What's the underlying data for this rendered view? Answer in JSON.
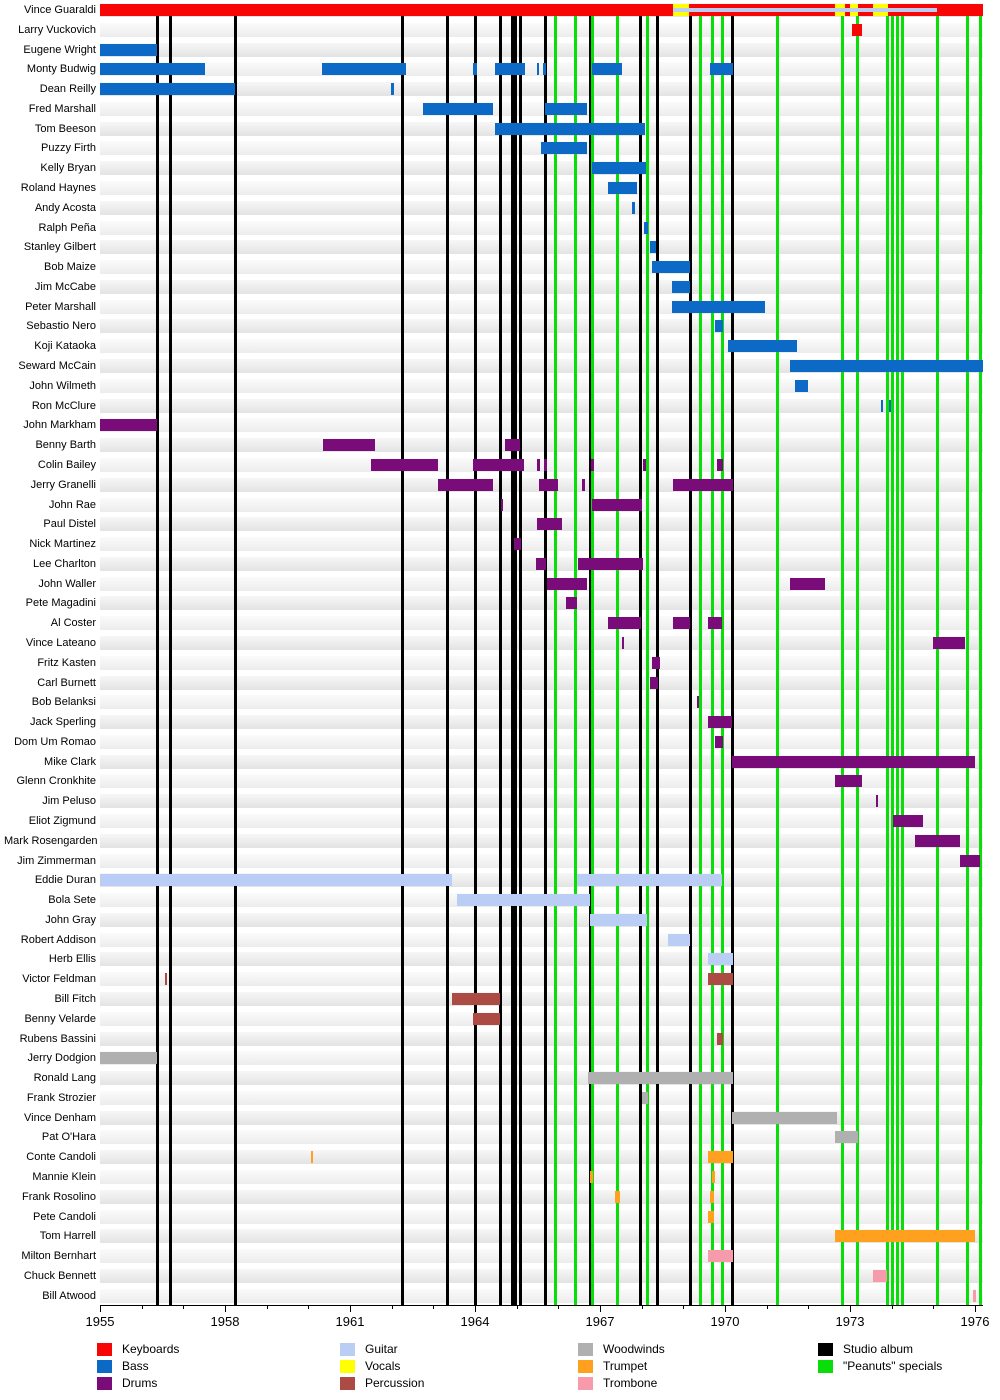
{
  "chart_data": {
    "type": "gantt-timeline",
    "description_visible_text_only": "Band-membership timeline with musician rows, colored instrument bars, black vertical lines for studio albums and green vertical lines for Peanuts specials",
    "axis": {
      "start_year": 1955,
      "end_year_edge": 1976.19,
      "major_tick_years": [
        1955,
        1958,
        1961,
        1964,
        1967,
        1970,
        1973,
        1976
      ],
      "minor_tick_every_years": 1
    },
    "colors": {
      "keyboards": "#f80505",
      "bass": "#0d69c6",
      "drums": "#7a0c7a",
      "guitar": "#bacdf5",
      "vocals": "#ffff00",
      "percussion": "#ac4b44",
      "woodwinds": "#b0b0b0",
      "trumpet": "#ffa01e",
      "trombone": "#f79aab",
      "studio_album": "#000000",
      "peanuts_special": "#09de09"
    },
    "studio_album_years": [
      1956.37,
      1956.68,
      1958.24,
      1962.27,
      1963.35,
      1964.0,
      1964.6,
      1964.89,
      1964.98,
      1965.08,
      1965.68,
      1966.76,
      1967.96,
      1968.39,
      1969.16,
      1970.17
    ],
    "peanuts_special_years": [
      1965.92,
      1966.4,
      1966.83,
      1967.43,
      1968.13,
      1969.4,
      1969.71,
      1969.93,
      1971.25,
      1972.83,
      1973.19,
      1973.89,
      1974.03,
      1974.15,
      1974.27,
      1975.09,
      1975.81,
      1976.12
    ],
    "members": [
      {
        "name": "Vince Guaraldi",
        "instrument": "keyboards",
        "bars": [
          [
            1955.0,
            1976.19
          ]
        ],
        "overlays": {
          "vocals": [
            [
              1968.75,
              1969.14
            ],
            [
              1972.64,
              1972.88
            ],
            [
              1973.0,
              1973.19
            ],
            [
              1973.55,
              1973.91
            ]
          ],
          "guitar_stripe": [
            [
              1968.75,
              1975.09
            ]
          ]
        }
      },
      {
        "name": "Larry Vuckovich",
        "instrument": "keyboards",
        "bars": [
          [
            1973.05,
            1973.29
          ]
        ]
      },
      {
        "name": "Eugene Wright",
        "instrument": "bass",
        "bars": [
          [
            1955.0,
            1956.37
          ]
        ]
      },
      {
        "name": "Monty Budwig",
        "instrument": "bass",
        "bars": [
          [
            1955.0,
            1957.52
          ],
          [
            1960.33,
            1962.34
          ],
          [
            1963.95,
            1964.05
          ],
          [
            1964.48,
            1965.2
          ],
          [
            1965.49,
            1965.54
          ],
          [
            1965.63,
            1965.7
          ],
          [
            1966.81,
            1967.53
          ],
          [
            1969.64,
            1970.19
          ]
        ]
      },
      {
        "name": "Dean Reilly",
        "instrument": "bass",
        "bars": [
          [
            1955.0,
            1958.24
          ],
          [
            1961.98,
            1962.06
          ]
        ]
      },
      {
        "name": "Fred Marshall",
        "instrument": "bass",
        "bars": [
          [
            1962.75,
            1964.43
          ],
          [
            1965.68,
            1966.69
          ]
        ]
      },
      {
        "name": "Tom Beeson",
        "instrument": "bass",
        "bars": [
          [
            1964.48,
            1968.08
          ]
        ]
      },
      {
        "name": "Puzzy Firth",
        "instrument": "bass",
        "bars": [
          [
            1965.58,
            1966.69
          ]
        ]
      },
      {
        "name": "Kelly Bryan",
        "instrument": "bass",
        "bars": [
          [
            1966.81,
            1968.1
          ]
        ]
      },
      {
        "name": "Roland Haynes",
        "instrument": "bass",
        "bars": [
          [
            1967.19,
            1967.89
          ]
        ]
      },
      {
        "name": "Andy Acosta",
        "instrument": "bass",
        "bars": [
          [
            1967.77,
            1967.84
          ]
        ]
      },
      {
        "name": "Ralph Peña",
        "instrument": "bass",
        "bars": [
          [
            1968.06,
            1968.15
          ]
        ]
      },
      {
        "name": "Stanley Gilbert",
        "instrument": "bass",
        "bars": [
          [
            1968.2,
            1968.34
          ]
        ]
      },
      {
        "name": "Bob Maize",
        "instrument": "bass",
        "bars": [
          [
            1968.25,
            1969.16
          ]
        ]
      },
      {
        "name": "Jim McCabe",
        "instrument": "bass",
        "bars": [
          [
            1968.73,
            1969.16
          ]
        ]
      },
      {
        "name": "Peter Marshall",
        "instrument": "bass",
        "bars": [
          [
            1968.73,
            1970.96
          ]
        ]
      },
      {
        "name": "Sebastio Nero",
        "instrument": "bass",
        "bars": [
          [
            1969.76,
            1969.95
          ]
        ]
      },
      {
        "name": "Koji Kataoka",
        "instrument": "bass",
        "bars": [
          [
            1970.07,
            1971.73
          ]
        ]
      },
      {
        "name": "Seward McCain",
        "instrument": "bass",
        "bars": [
          [
            1971.56,
            1976.19
          ]
        ]
      },
      {
        "name": "John Wilmeth",
        "instrument": "bass",
        "bars": [
          [
            1971.68,
            1971.99
          ]
        ]
      },
      {
        "name": "Ron McClure",
        "instrument": "bass",
        "bars": [
          [
            1973.74,
            1973.79
          ],
          [
            1973.94,
            1973.98
          ]
        ]
      },
      {
        "name": "John Markham",
        "instrument": "drums",
        "bars": [
          [
            1955.0,
            1956.37
          ]
        ]
      },
      {
        "name": "Benny Barth",
        "instrument": "drums",
        "bars": [
          [
            1960.35,
            1961.6
          ],
          [
            1964.72,
            1965.08
          ]
        ]
      },
      {
        "name": "Colin Bailey",
        "instrument": "drums",
        "bars": [
          [
            1961.5,
            1963.11
          ],
          [
            1963.95,
            1965.18
          ],
          [
            1965.49,
            1965.56
          ],
          [
            1965.66,
            1965.73
          ],
          [
            1966.78,
            1966.86
          ],
          [
            1968.03,
            1968.1
          ],
          [
            1969.81,
            1969.95
          ]
        ]
      },
      {
        "name": "Jerry Granelli",
        "instrument": "drums",
        "bars": [
          [
            1963.11,
            1964.43
          ],
          [
            1965.54,
            1965.99
          ],
          [
            1966.57,
            1966.64
          ],
          [
            1968.75,
            1970.19
          ]
        ]
      },
      {
        "name": "John Rae",
        "instrument": "drums",
        "bars": [
          [
            1964.62,
            1964.67
          ],
          [
            1966.81,
            1968.01
          ]
        ]
      },
      {
        "name": "Paul Distel",
        "instrument": "drums",
        "bars": [
          [
            1965.49,
            1966.09
          ]
        ]
      },
      {
        "name": "Nick Martinez",
        "instrument": "drums",
        "bars": [
          [
            1964.94,
            1965.1
          ]
        ]
      },
      {
        "name": "Lee Charlton",
        "instrument": "drums",
        "bars": [
          [
            1965.46,
            1965.7
          ],
          [
            1966.47,
            1968.03
          ]
        ]
      },
      {
        "name": "John Waller",
        "instrument": "drums",
        "bars": [
          [
            1965.73,
            1966.69
          ],
          [
            1971.56,
            1972.4
          ]
        ]
      },
      {
        "name": "Pete Magadini",
        "instrument": "drums",
        "bars": [
          [
            1966.18,
            1966.45
          ]
        ]
      },
      {
        "name": "Al Coster",
        "instrument": "drums",
        "bars": [
          [
            1967.19,
            1967.98
          ],
          [
            1968.75,
            1969.16
          ],
          [
            1969.59,
            1969.93
          ]
        ]
      },
      {
        "name": "Vince Lateano",
        "instrument": "drums",
        "bars": [
          [
            1967.53,
            1967.58
          ],
          [
            1974.99,
            1975.76
          ]
        ]
      },
      {
        "name": "Fritz Kasten",
        "instrument": "drums",
        "bars": [
          [
            1968.25,
            1968.44
          ]
        ]
      },
      {
        "name": "Carl Burnett",
        "instrument": "drums",
        "bars": [
          [
            1968.2,
            1968.39
          ]
        ]
      },
      {
        "name": "Bob Belanksi",
        "instrument": "drums",
        "bars": [
          [
            1969.33,
            1969.38
          ]
        ]
      },
      {
        "name": "Jack Sperling",
        "instrument": "drums",
        "bars": [
          [
            1969.59,
            1970.17
          ]
        ]
      },
      {
        "name": "Dom Um Romao",
        "instrument": "drums",
        "bars": [
          [
            1969.76,
            1969.95
          ]
        ]
      },
      {
        "name": "Mike Clark",
        "instrument": "drums",
        "bars": [
          [
            1970.17,
            1976.0
          ]
        ]
      },
      {
        "name": "Glenn Cronkhite",
        "instrument": "drums",
        "bars": [
          [
            1972.64,
            1973.29
          ]
        ]
      },
      {
        "name": "Jim Peluso",
        "instrument": "drums",
        "bars": [
          [
            1973.62,
            1973.67
          ]
        ]
      },
      {
        "name": "Eliot Zigmund",
        "instrument": "drums",
        "bars": [
          [
            1974.03,
            1974.75
          ]
        ]
      },
      {
        "name": "Mark Rosengarden",
        "instrument": "drums",
        "bars": [
          [
            1974.56,
            1975.64
          ]
        ]
      },
      {
        "name": "Jim Zimmerman",
        "instrument": "drums",
        "bars": [
          [
            1975.64,
            1976.12
          ]
        ]
      },
      {
        "name": "Eddie Duran",
        "instrument": "guitar",
        "bars": [
          [
            1955.0,
            1963.45
          ],
          [
            1966.45,
            1969.93
          ]
        ]
      },
      {
        "name": "Bola Sete",
        "instrument": "guitar",
        "bars": [
          [
            1963.57,
            1966.76
          ]
        ]
      },
      {
        "name": "John Gray",
        "instrument": "guitar",
        "bars": [
          [
            1966.76,
            1968.13
          ]
        ]
      },
      {
        "name": "Robert Addison",
        "instrument": "guitar",
        "bars": [
          [
            1968.63,
            1969.16
          ]
        ]
      },
      {
        "name": "Herb Ellis",
        "instrument": "guitar",
        "bars": [
          [
            1969.59,
            1970.19
          ]
        ]
      },
      {
        "name": "Victor Feldman",
        "instrument": "percussion",
        "bars": [
          [
            1956.56,
            1956.61
          ],
          [
            1969.59,
            1970.19
          ]
        ]
      },
      {
        "name": "Bill Fitch",
        "instrument": "percussion",
        "bars": [
          [
            1963.45,
            1964.6
          ]
        ]
      },
      {
        "name": "Benny Velarde",
        "instrument": "percussion",
        "bars": [
          [
            1963.95,
            1964.6
          ]
        ]
      },
      {
        "name": "Rubens Bassini",
        "instrument": "percussion",
        "bars": [
          [
            1969.81,
            1969.95
          ]
        ]
      },
      {
        "name": "Jerry Dodgion",
        "instrument": "woodwinds",
        "bars": [
          [
            1955.0,
            1956.37
          ]
        ]
      },
      {
        "name": "Ronald Lang",
        "instrument": "woodwinds",
        "bars": [
          [
            1966.71,
            1970.19
          ]
        ]
      },
      {
        "name": "Frank Strozier",
        "instrument": "woodwinds",
        "bars": [
          [
            1968.01,
            1968.15
          ]
        ]
      },
      {
        "name": "Vince Denham",
        "instrument": "woodwinds",
        "bars": [
          [
            1970.17,
            1972.69
          ]
        ]
      },
      {
        "name": "Pat O'Hara",
        "instrument": "woodwinds",
        "bars": [
          [
            1972.64,
            1973.19
          ]
        ]
      },
      {
        "name": "Conte Candoli",
        "instrument": "trumpet",
        "bars": [
          [
            1960.06,
            1960.11
          ],
          [
            1969.59,
            1970.19
          ]
        ]
      },
      {
        "name": "Mannie Klein",
        "instrument": "trumpet",
        "bars": [
          [
            1966.76,
            1966.83
          ],
          [
            1969.69,
            1969.76
          ]
        ]
      },
      {
        "name": "Frank Rosolino",
        "instrument": "trumpet",
        "bars": [
          [
            1967.36,
            1967.48
          ],
          [
            1969.64,
            1969.74
          ]
        ]
      },
      {
        "name": "Pete Candoli",
        "instrument": "trumpet",
        "bars": [
          [
            1969.59,
            1969.74
          ]
        ]
      },
      {
        "name": "Tom Harrell",
        "instrument": "trumpet",
        "bars": [
          [
            1972.64,
            1976.0
          ]
        ]
      },
      {
        "name": "Milton Bernhart",
        "instrument": "trombone",
        "bars": [
          [
            1969.59,
            1970.19
          ]
        ]
      },
      {
        "name": "Chuck Bennett",
        "instrument": "trombone",
        "bars": [
          [
            1973.55,
            1973.89
          ]
        ]
      },
      {
        "name": "Bill Atwood",
        "instrument": "trombone",
        "bars": [
          [
            1975.95,
            1976.02
          ]
        ]
      }
    ],
    "legend": {
      "columns": [
        {
          "items": [
            {
              "label": "Keyboards",
              "color_key": "keyboards"
            },
            {
              "label": "Bass",
              "color_key": "bass"
            },
            {
              "label": "Drums",
              "color_key": "drums"
            }
          ]
        },
        {
          "items": [
            {
              "label": "Guitar",
              "color_key": "guitar"
            },
            {
              "label": "Vocals",
              "color_key": "vocals"
            },
            {
              "label": "Percussion",
              "color_key": "percussion"
            }
          ]
        },
        {
          "items": [
            {
              "label": "Woodwinds",
              "color_key": "woodwinds"
            },
            {
              "label": "Trumpet",
              "color_key": "trumpet"
            },
            {
              "label": "Trombone",
              "color_key": "trombone"
            }
          ]
        },
        {
          "items": [
            {
              "label": "Studio album",
              "color_key": "studio_album"
            },
            {
              "label": "\"Peanuts\" specials",
              "color_key": "peanuts_special"
            }
          ]
        }
      ]
    }
  }
}
